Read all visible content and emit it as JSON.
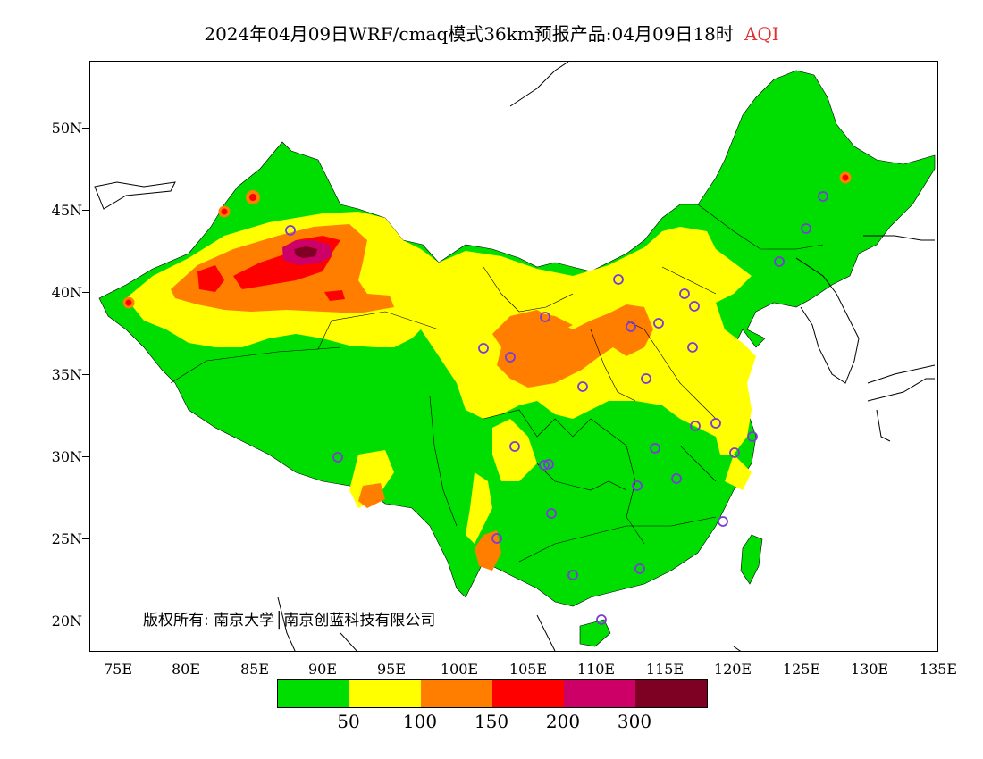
{
  "title": {
    "main": "2024年04月09日WRF/cmaq模式36km预报产品:04月09日18时",
    "variable": "AQI"
  },
  "y_axis_labels": [
    "50N",
    "45N",
    "40N",
    "35N",
    "30N",
    "25N",
    "20N"
  ],
  "x_axis_labels": [
    "75E",
    "80E",
    "85E",
    "90E",
    "95E",
    "100E",
    "105E",
    "110E",
    "115E",
    "120E",
    "125E",
    "130E",
    "135E"
  ],
  "copyright": "版权所有: 南京大学│南京创蓝科技有限公司",
  "legend": {
    "colors": [
      "#00dd00",
      "#ffff00",
      "#ff7e00",
      "#ff0000",
      "#cc0066",
      "#7e0023"
    ],
    "labels": [
      "50",
      "100",
      "150",
      "200",
      "300"
    ]
  },
  "map": {
    "extent_lon": [
      73,
      135
    ],
    "extent_lat": [
      18,
      54
    ],
    "colors": {
      "good": "#00dd00",
      "moderate": "#ffff00",
      "sensitive": "#ff7e00",
      "unhealthy": "#ff0000",
      "very_unhealthy": "#cc0066",
      "hazardous": "#7e0023",
      "station_marker": "#7a3bd6"
    }
  }
}
